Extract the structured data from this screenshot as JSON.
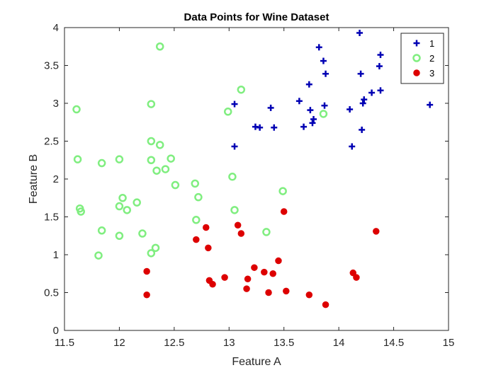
{
  "chart_data": {
    "type": "scatter",
    "title": "Data Points for Wine Dataset",
    "xlabel": "Feature A",
    "ylabel": "Feature B",
    "xlim": [
      11.5,
      15
    ],
    "ylim": [
      0,
      4
    ],
    "xticks": [
      11.5,
      12,
      12.5,
      13,
      13.5,
      14,
      14.5,
      15
    ],
    "yticks": [
      0,
      0.5,
      1,
      1.5,
      2,
      2.5,
      3,
      3.5,
      4
    ],
    "xtick_labels": [
      "11.5",
      "12",
      "12.5",
      "13",
      "13.5",
      "14",
      "14.5",
      "15"
    ],
    "ytick_labels": [
      "0",
      "0.5",
      "1",
      "1.5",
      "2",
      "2.5",
      "3",
      "3.5",
      "4"
    ],
    "grid": false,
    "legend_position": "top-right",
    "series": [
      {
        "name": "1",
        "marker": "plus",
        "color": "#0000b4",
        "points": [
          [
            13.05,
            2.99
          ],
          [
            13.05,
            2.43
          ],
          [
            13.24,
            2.69
          ],
          [
            13.28,
            2.68
          ],
          [
            13.38,
            2.94
          ],
          [
            13.41,
            2.68
          ],
          [
            13.64,
            3.03
          ],
          [
            13.68,
            2.69
          ],
          [
            13.73,
            3.25
          ],
          [
            13.74,
            2.91
          ],
          [
            13.76,
            2.74
          ],
          [
            13.77,
            2.79
          ],
          [
            13.82,
            3.74
          ],
          [
            13.86,
            3.56
          ],
          [
            13.87,
            2.97
          ],
          [
            13.88,
            3.39
          ],
          [
            14.1,
            2.92
          ],
          [
            14.12,
            2.43
          ],
          [
            14.19,
            3.93
          ],
          [
            14.2,
            3.39
          ],
          [
            14.21,
            2.65
          ],
          [
            14.22,
            3.0
          ],
          [
            14.23,
            3.05
          ],
          [
            14.3,
            3.14
          ],
          [
            14.37,
            3.49
          ],
          [
            14.38,
            3.64
          ],
          [
            14.38,
            3.17
          ],
          [
            14.83,
            2.98
          ]
        ]
      },
      {
        "name": "2",
        "marker": "circle",
        "color": "#80ee80",
        "points": [
          [
            11.61,
            2.92
          ],
          [
            11.62,
            2.26
          ],
          [
            11.64,
            1.61
          ],
          [
            11.65,
            1.57
          ],
          [
            11.81,
            0.99
          ],
          [
            11.84,
            1.32
          ],
          [
            11.84,
            2.21
          ],
          [
            12.0,
            2.26
          ],
          [
            12.0,
            1.64
          ],
          [
            12.0,
            1.25
          ],
          [
            12.03,
            1.75
          ],
          [
            12.07,
            1.59
          ],
          [
            12.16,
            1.69
          ],
          [
            12.21,
            1.28
          ],
          [
            12.29,
            2.99
          ],
          [
            12.29,
            2.5
          ],
          [
            12.29,
            2.25
          ],
          [
            12.29,
            1.02
          ],
          [
            12.33,
            1.09
          ],
          [
            12.34,
            2.11
          ],
          [
            12.37,
            3.75
          ],
          [
            12.37,
            2.45
          ],
          [
            12.42,
            2.13
          ],
          [
            12.47,
            2.27
          ],
          [
            12.51,
            1.92
          ],
          [
            12.69,
            1.94
          ],
          [
            12.7,
            1.46
          ],
          [
            12.72,
            1.76
          ],
          [
            12.99,
            2.89
          ],
          [
            13.03,
            2.03
          ],
          [
            13.05,
            1.59
          ],
          [
            13.11,
            3.18
          ],
          [
            13.34,
            1.3
          ],
          [
            13.49,
            1.84
          ],
          [
            13.86,
            2.86
          ]
        ]
      },
      {
        "name": "3",
        "marker": "filled-circle",
        "color": "#dd0000",
        "points": [
          [
            12.25,
            0.78
          ],
          [
            12.25,
            0.47
          ],
          [
            12.7,
            1.2
          ],
          [
            12.79,
            1.36
          ],
          [
            12.81,
            1.09
          ],
          [
            12.82,
            0.66
          ],
          [
            12.85,
            0.61
          ],
          [
            12.96,
            0.7
          ],
          [
            13.08,
            1.39
          ],
          [
            13.11,
            1.28
          ],
          [
            13.16,
            0.55
          ],
          [
            13.17,
            0.68
          ],
          [
            13.23,
            0.83
          ],
          [
            13.32,
            0.77
          ],
          [
            13.36,
            0.5
          ],
          [
            13.4,
            0.75
          ],
          [
            13.45,
            0.92
          ],
          [
            13.5,
            1.57
          ],
          [
            13.52,
            0.52
          ],
          [
            13.73,
            0.47
          ],
          [
            13.88,
            0.34
          ],
          [
            14.13,
            0.76
          ],
          [
            14.16,
            0.7
          ],
          [
            14.34,
            1.31
          ]
        ]
      }
    ]
  }
}
